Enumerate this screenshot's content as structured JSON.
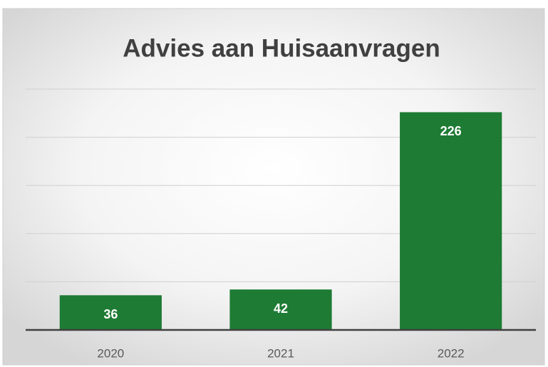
{
  "chart_data": {
    "type": "bar",
    "title": "Advies aan Huisaanvragen",
    "categories": [
      "2020",
      "2021",
      "2022"
    ],
    "values": [
      36,
      42,
      226
    ],
    "color": "#1e7b34",
    "ylim": [
      0,
      250
    ],
    "yticks": [
      0,
      50,
      100,
      150,
      200,
      250
    ],
    "grid": true
  }
}
